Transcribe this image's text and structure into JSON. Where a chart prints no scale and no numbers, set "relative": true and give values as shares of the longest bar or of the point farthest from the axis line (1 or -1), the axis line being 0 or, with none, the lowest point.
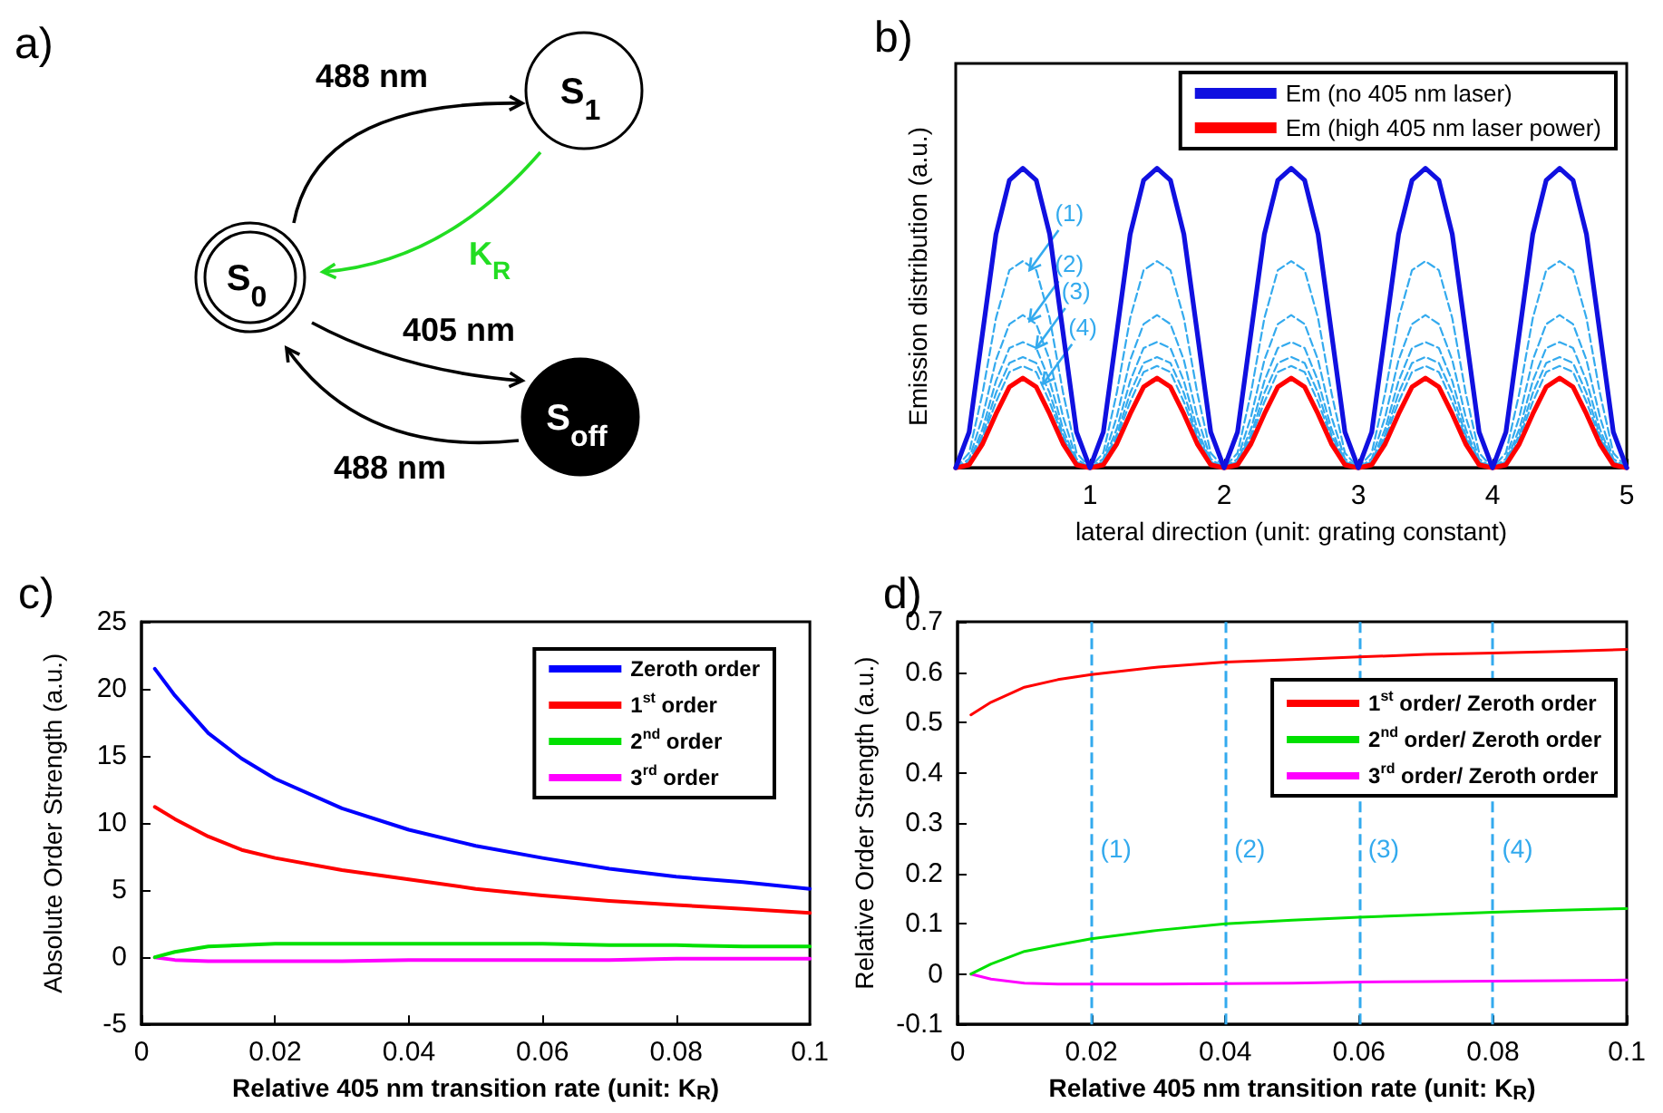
{
  "chart_data": [
    {
      "type": "other",
      "title": "a)",
      "annotations": [
        "S$_{0}$",
        "S$_{1}$",
        "S$_{off}$",
        "488 nm",
        "K$_{R}$",
        "405 nm",
        "488 nm"
      ]
    },
    {
      "type": "line",
      "title": "b)",
      "xlabel": "lateral direction (unit: grating constant)",
      "ylabel": "Emission distribution (a.u.)",
      "relative": true,
      "xlim": [
        0,
        5
      ],
      "xticks": [
        1,
        2,
        3,
        4,
        5
      ],
      "legend": "top right",
      "grid": false,
      "x": [
        0,
        0.1,
        0.2,
        0.3,
        0.4,
        0.5,
        0.6,
        0.7,
        0.8,
        0.9,
        1,
        1.1,
        1.2,
        1.3,
        1.4,
        1.5,
        1.6,
        1.7,
        1.8,
        1.9,
        2,
        2.1,
        2.2,
        2.3,
        2.4,
        2.5,
        2.6,
        2.7,
        2.8,
        2.9,
        3,
        3.1,
        3.2,
        3.3,
        3.4,
        3.5,
        3.6,
        3.7,
        3.8,
        3.9,
        4,
        4.1,
        4.2,
        4.3,
        4.4,
        4.5,
        4.6,
        4.7,
        4.8,
        4.9,
        5
      ],
      "series": [
        {
          "name": "Em (no 405 nm laser)",
          "color": "#1010e0",
          "values": [
            0,
            0.12,
            0.45,
            0.78,
            0.96,
            1,
            0.96,
            0.78,
            0.45,
            0.12,
            0,
            0.12,
            0.45,
            0.78,
            0.96,
            1,
            0.96,
            0.78,
            0.45,
            0.12,
            0,
            0.12,
            0.45,
            0.78,
            0.96,
            1,
            0.96,
            0.78,
            0.45,
            0.12,
            0,
            0.12,
            0.45,
            0.78,
            0.96,
            1,
            0.96,
            0.78,
            0.45,
            0.12,
            0,
            0.12,
            0.45,
            0.78,
            0.96,
            1,
            0.96,
            0.78,
            0.45,
            0.12,
            0
          ]
        },
        {
          "name": "Em (high 405 nm laser power)",
          "color": "#ff0000",
          "values": [
            0,
            0.01,
            0.08,
            0.18,
            0.27,
            0.3,
            0.27,
            0.18,
            0.08,
            0.01,
            0,
            0.01,
            0.08,
            0.18,
            0.27,
            0.3,
            0.27,
            0.18,
            0.08,
            0.01,
            0,
            0.01,
            0.08,
            0.18,
            0.27,
            0.3,
            0.27,
            0.18,
            0.08,
            0.01,
            0,
            0.01,
            0.08,
            0.18,
            0.27,
            0.3,
            0.27,
            0.18,
            0.08,
            0.01,
            0,
            0.01,
            0.08,
            0.18,
            0.27,
            0.3,
            0.27,
            0.18,
            0.08,
            0.01,
            0
          ]
        },
        {
          "color": "#33aaee",
          "line_style": "dashed",
          "values": [
            0,
            0.05,
            0.25,
            0.5,
            0.66,
            0.69,
            0.66,
            0.5,
            0.25,
            0.05,
            0,
            0.05,
            0.25,
            0.5,
            0.66,
            0.69,
            0.66,
            0.5,
            0.25,
            0.05,
            0,
            0.05,
            0.25,
            0.5,
            0.66,
            0.69,
            0.66,
            0.5,
            0.25,
            0.05,
            0,
            0.05,
            0.25,
            0.5,
            0.66,
            0.69,
            0.66,
            0.5,
            0.25,
            0.05,
            0,
            0.05,
            0.25,
            0.5,
            0.66,
            0.69,
            0.66,
            0.5,
            0.25,
            0.05,
            0
          ]
        },
        {
          "color": "#33aaee",
          "line_style": "dashed",
          "values": [
            0,
            0.03,
            0.17,
            0.36,
            0.48,
            0.51,
            0.48,
            0.36,
            0.17,
            0.03,
            0,
            0.03,
            0.17,
            0.36,
            0.48,
            0.51,
            0.48,
            0.36,
            0.17,
            0.03,
            0,
            0.03,
            0.17,
            0.36,
            0.48,
            0.51,
            0.48,
            0.36,
            0.17,
            0.03,
            0,
            0.03,
            0.17,
            0.36,
            0.48,
            0.51,
            0.48,
            0.36,
            0.17,
            0.03,
            0,
            0.03,
            0.17,
            0.36,
            0.48,
            0.51,
            0.48,
            0.36,
            0.17,
            0.03,
            0
          ]
        },
        {
          "color": "#33aaee",
          "line_style": "dashed",
          "values": [
            0,
            0.02,
            0.13,
            0.29,
            0.4,
            0.42,
            0.4,
            0.29,
            0.13,
            0.02,
            0,
            0.02,
            0.13,
            0.29,
            0.4,
            0.42,
            0.4,
            0.29,
            0.13,
            0.02,
            0,
            0.02,
            0.13,
            0.29,
            0.4,
            0.42,
            0.4,
            0.29,
            0.13,
            0.02,
            0,
            0.02,
            0.13,
            0.29,
            0.4,
            0.42,
            0.4,
            0.29,
            0.13,
            0.02,
            0,
            0.02,
            0.13,
            0.29,
            0.4,
            0.42,
            0.4,
            0.29,
            0.13,
            0.02,
            0
          ]
        },
        {
          "color": "#33aaee",
          "line_style": "dashed",
          "values": [
            0,
            0.02,
            0.11,
            0.25,
            0.35,
            0.37,
            0.35,
            0.25,
            0.11,
            0.02,
            0,
            0.02,
            0.11,
            0.25,
            0.35,
            0.37,
            0.35,
            0.25,
            0.11,
            0.02,
            0,
            0.02,
            0.11,
            0.25,
            0.35,
            0.37,
            0.35,
            0.25,
            0.11,
            0.02,
            0,
            0.02,
            0.11,
            0.25,
            0.35,
            0.37,
            0.35,
            0.25,
            0.11,
            0.02,
            0,
            0.02,
            0.11,
            0.25,
            0.35,
            0.37,
            0.35,
            0.25,
            0.11,
            0.02,
            0
          ]
        },
        {
          "color": "#33aaee",
          "line_style": "dashed",
          "values": [
            0,
            0.01,
            0.1,
            0.22,
            0.32,
            0.34,
            0.32,
            0.22,
            0.1,
            0.01,
            0,
            0.01,
            0.1,
            0.22,
            0.32,
            0.34,
            0.32,
            0.22,
            0.1,
            0.01,
            0,
            0.01,
            0.1,
            0.22,
            0.32,
            0.34,
            0.32,
            0.22,
            0.1,
            0.01,
            0,
            0.01,
            0.1,
            0.22,
            0.32,
            0.34,
            0.32,
            0.22,
            0.1,
            0.01,
            0,
            0.01,
            0.1,
            0.22,
            0.32,
            0.34,
            0.32,
            0.22,
            0.1,
            0.01,
            0
          ]
        }
      ],
      "annotations": [
        {
          "text": "(1)",
          "x": 0.55,
          "y": 0.66
        },
        {
          "text": "(2)",
          "x": 0.55,
          "y": 0.49
        },
        {
          "text": "(3)",
          "x": 0.6,
          "y": 0.4
        },
        {
          "text": "(4)",
          "x": 0.65,
          "y": 0.28
        }
      ]
    },
    {
      "type": "line",
      "title": "c)",
      "xlabel": "Relative 405 nm transition rate (unit: K$_{R}$)",
      "ylabel": "Absolute Order Strength (a.u.)",
      "xlim": [
        0,
        0.1
      ],
      "xticks": [
        0,
        0.02,
        0.04,
        0.06,
        0.08,
        0.1
      ],
      "ylim": [
        -5,
        25
      ],
      "yticks": [
        -5,
        0,
        5,
        10,
        15,
        20,
        25
      ],
      "legend": "top right",
      "grid": false,
      "x": [
        0.002,
        0.005,
        0.01,
        0.015,
        0.02,
        0.03,
        0.04,
        0.05,
        0.06,
        0.07,
        0.08,
        0.09,
        0.1
      ],
      "series": [
        {
          "name": "Zeroth order",
          "color": "#0000ff",
          "values": [
            21.5,
            19.5,
            16.7,
            14.8,
            13.3,
            11.1,
            9.5,
            8.3,
            7.4,
            6.6,
            6.0,
            5.6,
            5.1
          ]
        },
        {
          "name": "1$^{st}$ order",
          "color": "#ff0000",
          "values": [
            11.2,
            10.3,
            9.0,
            8.0,
            7.4,
            6.5,
            5.8,
            5.1,
            4.6,
            4.2,
            3.9,
            3.6,
            3.3
          ]
        },
        {
          "name": "2$^{nd}$ order",
          "color": "#00e000",
          "values": [
            0,
            0.4,
            0.8,
            0.9,
            1.0,
            1.0,
            1.0,
            1.0,
            1.0,
            0.9,
            0.9,
            0.8,
            0.8
          ]
        },
        {
          "name": "3$^{rd}$ order",
          "color": "#ff00ff",
          "values": [
            0,
            -0.2,
            -0.3,
            -0.3,
            -0.3,
            -0.3,
            -0.2,
            -0.2,
            -0.2,
            -0.2,
            -0.1,
            -0.1,
            -0.1
          ]
        }
      ]
    },
    {
      "type": "line",
      "title": "d)",
      "xlabel": "Relative 405 nm transition rate (unit: K$_{R}$)",
      "ylabel": "Relative Order Strength (a.u.)",
      "xlim": [
        0,
        0.1
      ],
      "xticks": [
        0,
        0.02,
        0.04,
        0.06,
        0.08,
        0.1
      ],
      "ylim": [
        -0.1,
        0.7
      ],
      "yticks": [
        -0.1,
        0,
        0.1,
        0.2,
        0.3,
        0.4,
        0.5,
        0.6,
        0.7
      ],
      "legend": "top right",
      "grid": false,
      "x": [
        0.002,
        0.005,
        0.01,
        0.015,
        0.02,
        0.03,
        0.04,
        0.05,
        0.06,
        0.07,
        0.08,
        0.09,
        0.1
      ],
      "series": [
        {
          "name": "1$^{st}$ order/ Zeroth order",
          "color": "#ff0000",
          "values": [
            0.515,
            0.54,
            0.57,
            0.585,
            0.595,
            0.61,
            0.62,
            0.625,
            0.63,
            0.635,
            0.638,
            0.641,
            0.645
          ]
        },
        {
          "name": "2$^{nd}$ order/ Zeroth order",
          "color": "#00e000",
          "values": [
            0,
            0.02,
            0.045,
            0.058,
            0.07,
            0.087,
            0.1,
            0.107,
            0.113,
            0.118,
            0.123,
            0.127,
            0.13
          ]
        },
        {
          "name": "3$^{rd}$ order/ Zeroth order",
          "color": "#ff00ff",
          "values": [
            0,
            -0.01,
            -0.018,
            -0.02,
            -0.02,
            -0.02,
            -0.019,
            -0.018,
            -0.016,
            -0.015,
            -0.014,
            -0.013,
            -0.012
          ]
        }
      ],
      "ref_lines": [
        {
          "axis": "x",
          "value": 0.02,
          "color": "#33aaee",
          "line_style": "dashed"
        },
        {
          "axis": "x",
          "value": 0.04,
          "color": "#33aaee",
          "line_style": "dashed"
        },
        {
          "axis": "x",
          "value": 0.06,
          "color": "#33aaee",
          "line_style": "dashed"
        },
        {
          "axis": "x",
          "value": 0.08,
          "color": "#33aaee",
          "line_style": "dashed"
        }
      ],
      "annotations": [
        {
          "text": "(1)",
          "x": 0.02,
          "y": 0.25
        },
        {
          "text": "(2)",
          "x": 0.04,
          "y": 0.25
        },
        {
          "text": "(3)",
          "x": 0.06,
          "y": 0.25
        },
        {
          "text": "(4)",
          "x": 0.08,
          "y": 0.25
        }
      ]
    }
  ]
}
